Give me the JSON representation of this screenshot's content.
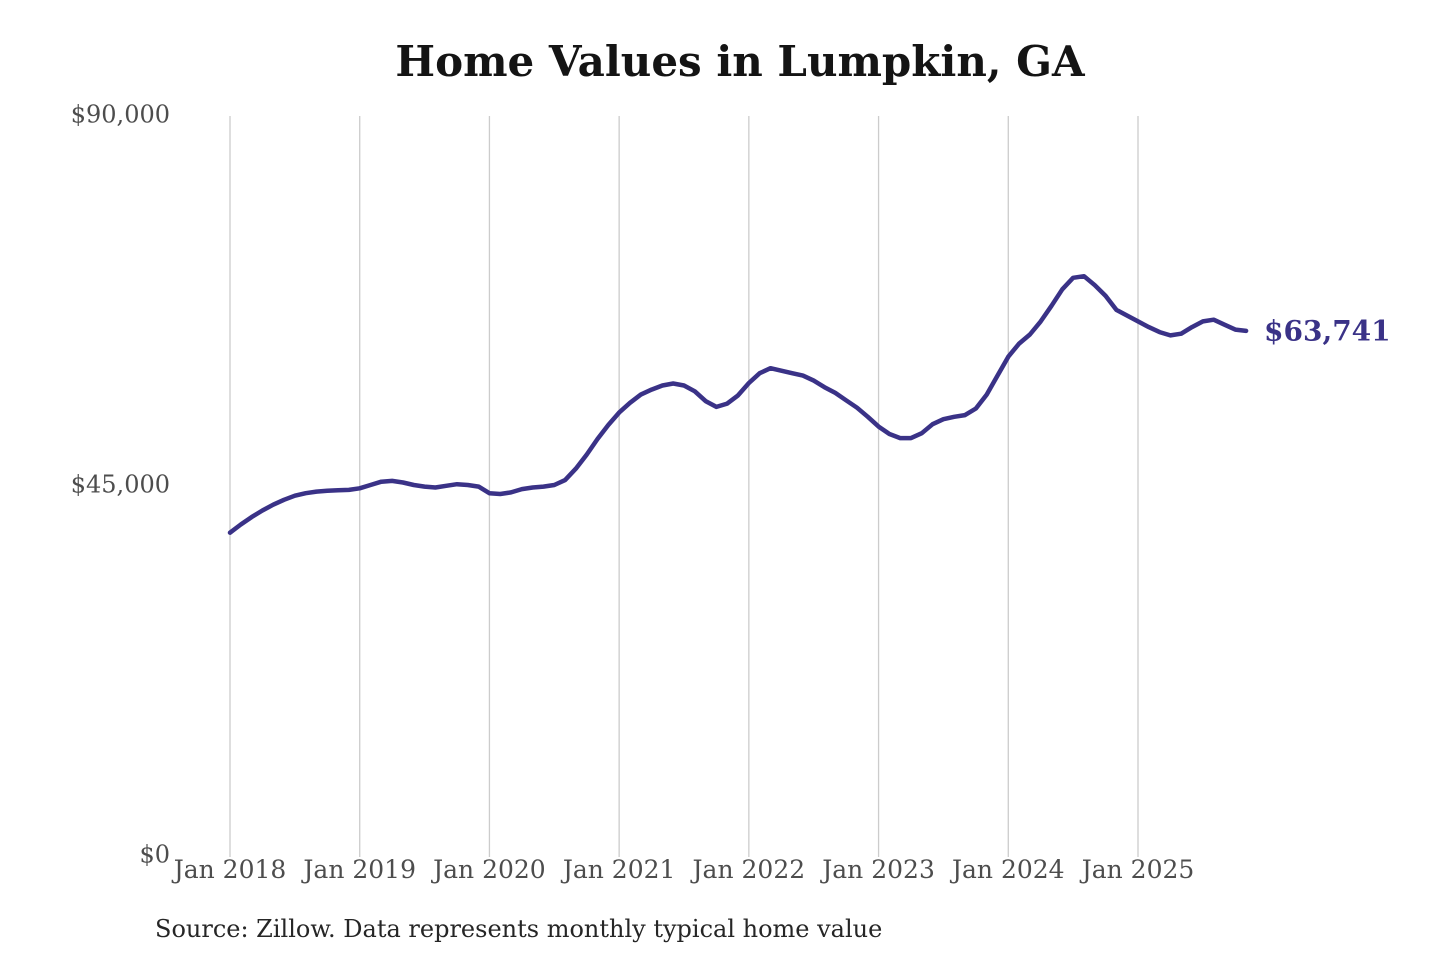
{
  "title": "Home Values in Lumpkin, GA",
  "source_note": "Source: Zillow. Data represents monthly typical home value",
  "colors": {
    "line": "#3a3287",
    "grid": "#cccccc",
    "axis_text": "#4d4d4d",
    "title_text": "#141414",
    "background": "#ffffff"
  },
  "chart_data": {
    "type": "line",
    "title": "Home Values in Lumpkin, GA",
    "x_tick_labels": [
      "Jan 2018",
      "Jan 2019",
      "Jan 2020",
      "Jan 2021",
      "Jan 2022",
      "Jan 2023",
      "Jan 2024",
      "Jan 2025"
    ],
    "y_ticks": [
      {
        "value": 0,
        "label": "$0"
      },
      {
        "value": 45000,
        "label": "$45,000"
      },
      {
        "value": 90000,
        "label": "$90,000"
      }
    ],
    "ylim": [
      0,
      90000
    ],
    "grid": "vertical-only",
    "legend": "none",
    "frequency": "monthly",
    "x_start_month": "Jan 2018",
    "x_end_month": "Nov 2025",
    "last_value": 63741,
    "last_value_label": "$63,741",
    "values": [
      39200,
      40200,
      41100,
      41900,
      42600,
      43200,
      43700,
      44000,
      44200,
      44300,
      44350,
      44400,
      44600,
      45000,
      45400,
      45500,
      45300,
      45000,
      44800,
      44700,
      44900,
      45100,
      45000,
      44800,
      44000,
      43900,
      44100,
      44500,
      44700,
      44800,
      45000,
      45600,
      47000,
      48700,
      50600,
      52300,
      53800,
      55000,
      56000,
      56600,
      57100,
      57350,
      57100,
      56400,
      55200,
      54500,
      54900,
      55900,
      57400,
      58600,
      59200,
      58900,
      58600,
      58300,
      57700,
      56900,
      56200,
      55300,
      54400,
      53300,
      52100,
      51200,
      50700,
      50700,
      51300,
      52400,
      53000,
      53300,
      53500,
      54300,
      56000,
      58300,
      60600,
      62200,
      63300,
      64900,
      66800,
      68800,
      70200,
      70400,
      69300,
      68000,
      66300,
      65600,
      64900,
      64200,
      63600,
      63200,
      63400,
      64200,
      64900,
      65100,
      64500,
      63900,
      63741
    ]
  }
}
